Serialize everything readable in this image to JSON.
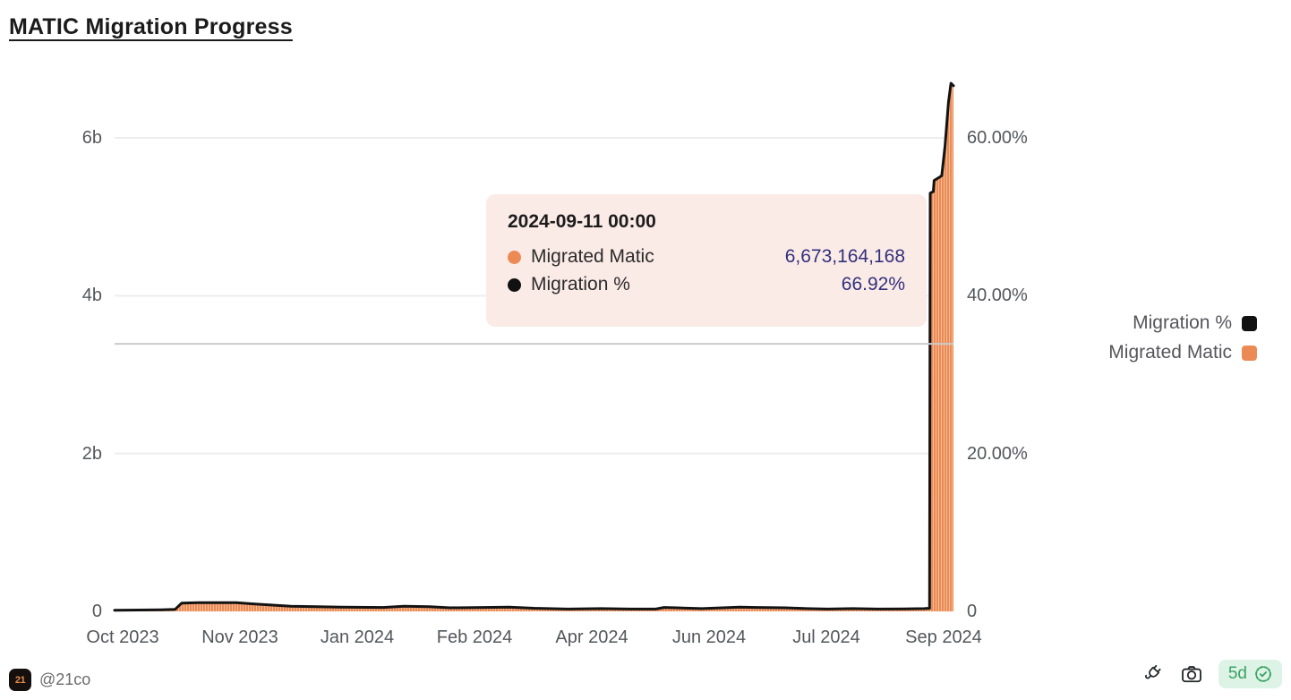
{
  "title": "MATIC Migration Progress",
  "tooltip": {
    "header": "2024-09-11 00:00",
    "rows": [
      {
        "label": "Migrated Matic",
        "value": "6,673,164,168",
        "color": "#ec8a55"
      },
      {
        "label": "Migration %",
        "value": "66.92%",
        "color": "#111111"
      }
    ]
  },
  "legend": [
    {
      "label": "Migration %",
      "color": "#111111"
    },
    {
      "label": "Migrated Matic",
      "color": "#ec8a55"
    }
  ],
  "footer": {
    "logo_text": "21",
    "handle": "@21co",
    "badge_text": "5d",
    "icons": [
      "plug-icon",
      "camera-icon",
      "verified-seal-icon"
    ]
  },
  "colors": {
    "bar_orange": "#ec8a55",
    "bar_stripe_light": "#f5c39e",
    "line_black": "#131313",
    "tooltip_bg": "#fbebe7",
    "tooltip_value_navy": "#32307d",
    "badge_green": "#3aa263",
    "badge_bg": "#ddf3e6",
    "gridline": "#ededed",
    "crosshair": "#cbcbcb",
    "axis_text": "#54565b"
  },
  "chart_data": {
    "type": "mixed",
    "title": "MATIC Migration Progress",
    "series": [
      {
        "name": "Migrated Matic",
        "type": "bar",
        "color": "#ec8a55",
        "axis": "left"
      },
      {
        "name": "Migration %",
        "type": "line",
        "color": "#131313",
        "axis": "right"
      }
    ],
    "x_axis": {
      "labels": [
        "Oct 2023",
        "Nov 2023",
        "Jan 2024",
        "Feb 2024",
        "Apr 2024",
        "Jun 2024",
        "Jul 2024",
        "Sep 2024"
      ]
    },
    "y_axis_left": {
      "ticks": [
        {
          "pct": 0,
          "label": "0"
        },
        {
          "pct": 20,
          "label": "2b"
        },
        {
          "pct": 40,
          "label": "4b"
        },
        {
          "pct": 60,
          "label": "6b"
        }
      ],
      "range_billions": [
        0,
        6.8
      ]
    },
    "y_axis_right": {
      "ticks": [
        {
          "pct": 0,
          "label": "0"
        },
        {
          "pct": 20,
          "label": "20.00%"
        },
        {
          "pct": 40,
          "label": "40.00%"
        },
        {
          "pct": 60,
          "label": "60.00%"
        }
      ],
      "range_pct": [
        0,
        67.5
      ]
    },
    "gridline_pcts": [
      20,
      40,
      60
    ],
    "hover": {
      "date": "2024-09-11 00:00",
      "migrated_matic": 6673164168,
      "migration_pct": 66.92,
      "crosshair_pct": 33.9
    },
    "points_frac_pct": [
      [
        0.0,
        0.15
      ],
      [
        0.055,
        0.2
      ],
      [
        0.072,
        0.25
      ],
      [
        0.08,
        1.05
      ],
      [
        0.1,
        1.1
      ],
      [
        0.145,
        1.1
      ],
      [
        0.165,
        0.95
      ],
      [
        0.21,
        0.65
      ],
      [
        0.27,
        0.55
      ],
      [
        0.32,
        0.5
      ],
      [
        0.345,
        0.65
      ],
      [
        0.375,
        0.6
      ],
      [
        0.4,
        0.45
      ],
      [
        0.44,
        0.5
      ],
      [
        0.47,
        0.55
      ],
      [
        0.5,
        0.4
      ],
      [
        0.54,
        0.3
      ],
      [
        0.58,
        0.35
      ],
      [
        0.615,
        0.3
      ],
      [
        0.645,
        0.3
      ],
      [
        0.655,
        0.5
      ],
      [
        0.67,
        0.45
      ],
      [
        0.7,
        0.35
      ],
      [
        0.725,
        0.45
      ],
      [
        0.745,
        0.55
      ],
      [
        0.765,
        0.5
      ],
      [
        0.8,
        0.45
      ],
      [
        0.825,
        0.35
      ],
      [
        0.85,
        0.3
      ],
      [
        0.88,
        0.35
      ],
      [
        0.91,
        0.3
      ],
      [
        0.94,
        0.32
      ],
      [
        0.965,
        0.35
      ],
      [
        0.9715,
        0.4
      ],
      [
        0.9722,
        53.0
      ],
      [
        0.976,
        53.2
      ],
      [
        0.977,
        54.6
      ],
      [
        0.983,
        55.0
      ],
      [
        0.986,
        55.2
      ],
      [
        0.99,
        59.0
      ],
      [
        0.994,
        64.5
      ],
      [
        0.997,
        66.92
      ],
      [
        1.0,
        66.6
      ]
    ]
  }
}
